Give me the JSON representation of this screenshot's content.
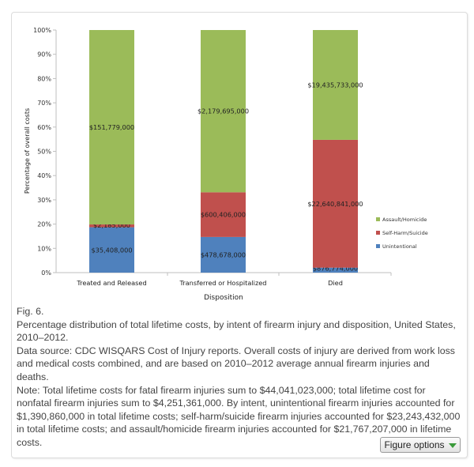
{
  "chart_data": {
    "type": "bar",
    "stacked": "percent",
    "title": "",
    "xlabel": "Disposition",
    "ylabel": "Percentage of overall costs",
    "ylim": [
      0,
      100
    ],
    "yticks": [
      "0%",
      "10%",
      "20%",
      "30%",
      "40%",
      "50%",
      "60%",
      "70%",
      "80%",
      "90%",
      "100%"
    ],
    "categories": [
      "Treated and Released",
      "Transferred or Hospitalized",
      "Died"
    ],
    "series": [
      {
        "name": "Unintentional",
        "color": "#4f81bd",
        "values": [
          35408000,
          478678000,
          876774000
        ],
        "labels": [
          "$35,408,000",
          "$478,678,000",
          "$876,774,000"
        ]
      },
      {
        "name": "Self-Harm/Suicide",
        "color": "#c0504d",
        "values": [
          2185000,
          600406000,
          22640841000
        ],
        "labels": [
          "$2,185,000",
          "$600,406,000",
          "$22,640,841,000"
        ]
      },
      {
        "name": "Assault/Homicide",
        "color": "#9bbb59",
        "values": [
          151779000,
          2179695000,
          19435733000
        ],
        "labels": [
          "$151,779,000",
          "$2,179,695,000",
          "$19,435,733,000"
        ]
      }
    ],
    "legend_order": [
      "Assault/Homicide",
      "Self-Harm/Suicide",
      "Unintentional"
    ],
    "legend_position": "right",
    "grid": false
  },
  "caption": {
    "fig_label": "Fig. 6.",
    "title": "Percentage distribution of total lifetime costs, by intent of firearm injury and disposition, United States, 2010–2012.",
    "source": "Data source: CDC WISQARS Cost of Injury reports. Overall costs of injury are derived from work loss and medical costs combined, and are based on 2010–2012 average annual firearm injuries and deaths.",
    "note": "Note: Total lifetime costs for fatal firearm injuries sum to $44,041,023,000; total lifetime cost for nonfatal firearm injuries sum to $4,251,361,000. By intent, unintentional firearm injuries accounted for $1,390,860,000 in total lifetime costs; self-harm/suicide firearm injuries accounted for $23,243,432,000 in total lifetime costs; and assault/homicide firearm injuries accounted for $21,767,207,000 in lifetime costs."
  },
  "figure_options": {
    "label": "Figure options",
    "icon": "triangle-down-icon"
  }
}
